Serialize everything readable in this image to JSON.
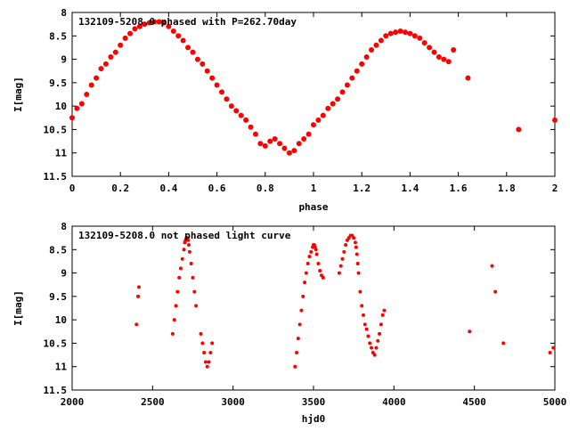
{
  "chart_data": [
    {
      "type": "scatter",
      "title": "132109-5208.0 phased with P=262.70day",
      "xlabel": "phase",
      "ylabel": "I[mag]",
      "xlim": [
        0,
        2
      ],
      "ylim": [
        11.5,
        8
      ],
      "y_inverted": true,
      "x_ticks": [
        "0",
        "0.2",
        "0.4",
        "0.6",
        "0.8",
        "1",
        "1.2",
        "1.4",
        "1.6",
        "1.8",
        "2"
      ],
      "y_ticks": [
        "8",
        "8.5",
        "9",
        "9.5",
        "10",
        "10.5",
        "11",
        "11.5"
      ],
      "grid": false,
      "legend": "none",
      "marker_color": "#ff0000",
      "series": [
        {
          "x": [
            0.0,
            0.02,
            0.04,
            0.06,
            0.08,
            0.1,
            0.12,
            0.14,
            0.16,
            0.18,
            0.2,
            0.22,
            0.24,
            0.26,
            0.28,
            0.3,
            0.32,
            0.34,
            0.36,
            0.38,
            0.4,
            0.42,
            0.44,
            0.46,
            0.48,
            0.5,
            0.52,
            0.54,
            0.56,
            0.58,
            0.6,
            0.62,
            0.64,
            0.66,
            0.68,
            0.7,
            0.72,
            0.74,
            0.76,
            0.78,
            0.8,
            0.82,
            0.84,
            0.86,
            0.88,
            0.9,
            0.92,
            0.94,
            0.96,
            0.98,
            1.0,
            1.02,
            1.04,
            1.06,
            1.08,
            1.1,
            1.12,
            1.14,
            1.16,
            1.18,
            1.2,
            1.22,
            1.24,
            1.26,
            1.28,
            1.3,
            1.32,
            1.34,
            1.36,
            1.38,
            1.4,
            1.42,
            1.44,
            1.46,
            1.48,
            1.5,
            1.52,
            1.54,
            1.56,
            1.58,
            1.64,
            1.85,
            2.0
          ],
          "y": [
            10.25,
            10.05,
            9.95,
            9.75,
            9.55,
            9.4,
            9.2,
            9.1,
            8.95,
            8.85,
            8.7,
            8.55,
            8.45,
            8.35,
            8.3,
            8.25,
            8.22,
            8.2,
            8.2,
            8.22,
            8.3,
            8.4,
            8.5,
            8.6,
            8.75,
            8.85,
            9.0,
            9.1,
            9.25,
            9.4,
            9.55,
            9.7,
            9.85,
            10.0,
            10.1,
            10.2,
            10.3,
            10.45,
            10.6,
            10.8,
            10.85,
            10.75,
            10.7,
            10.8,
            10.9,
            11.0,
            10.95,
            10.8,
            10.7,
            10.6,
            10.4,
            10.3,
            10.2,
            10.05,
            9.95,
            9.85,
            9.7,
            9.55,
            9.4,
            9.25,
            9.1,
            8.95,
            8.8,
            8.7,
            8.6,
            8.5,
            8.45,
            8.42,
            8.4,
            8.42,
            8.45,
            8.5,
            8.55,
            8.65,
            8.75,
            8.85,
            8.95,
            9.0,
            9.05,
            8.8,
            9.4,
            10.5,
            10.3
          ]
        }
      ]
    },
    {
      "type": "scatter",
      "title": "132109-5208.0 not phased light curve",
      "xlabel": "hjd0",
      "ylabel": "I[mag]",
      "xlim": [
        2000,
        5000
      ],
      "ylim": [
        11.5,
        8
      ],
      "y_inverted": true,
      "x_ticks": [
        "2000",
        "2500",
        "3000",
        "3500",
        "4000",
        "4500",
        "5000"
      ],
      "y_ticks": [
        "8",
        "8.5",
        "9",
        "9.5",
        "10",
        "10.5",
        "11",
        "11.5"
      ],
      "grid": false,
      "legend": "none",
      "marker_color": "#ff0000",
      "series": [
        {
          "x": [
            2400,
            2410,
            2415,
            2625,
            2635,
            2645,
            2655,
            2665,
            2675,
            2685,
            2695,
            2700,
            2705,
            2710,
            2715,
            2720,
            2725,
            2730,
            2740,
            2750,
            2760,
            2770,
            2800,
            2810,
            2820,
            2830,
            2840,
            2850,
            2860,
            2870,
            3385,
            3395,
            3405,
            3415,
            3425,
            3435,
            3445,
            3455,
            3465,
            3475,
            3485,
            3495,
            3500,
            3505,
            3510,
            3515,
            3520,
            3530,
            3540,
            3550,
            3560,
            3660,
            3670,
            3680,
            3690,
            3700,
            3710,
            3720,
            3730,
            3740,
            3750,
            3760,
            3765,
            3770,
            3775,
            3780,
            3790,
            3800,
            3810,
            3820,
            3830,
            3840,
            3850,
            3860,
            3870,
            3880,
            3890,
            3900,
            3910,
            3920,
            3930,
            3940,
            4470,
            4610,
            4630,
            4680,
            4970,
            4990
          ],
          "y": [
            10.1,
            9.5,
            9.3,
            10.3,
            10.0,
            9.7,
            9.4,
            9.1,
            8.9,
            8.7,
            8.5,
            8.35,
            8.3,
            8.25,
            8.25,
            8.3,
            8.4,
            8.55,
            8.8,
            9.1,
            9.4,
            9.7,
            10.3,
            10.5,
            10.7,
            10.9,
            11.0,
            10.9,
            10.7,
            10.5,
            11.0,
            10.7,
            10.4,
            10.1,
            9.8,
            9.5,
            9.2,
            9.0,
            8.8,
            8.65,
            8.55,
            8.45,
            8.4,
            8.4,
            8.45,
            8.5,
            8.6,
            8.8,
            8.95,
            9.05,
            9.1,
            9.0,
            8.85,
            8.7,
            8.55,
            8.4,
            8.3,
            8.25,
            8.2,
            8.2,
            8.25,
            8.35,
            8.45,
            8.6,
            8.8,
            9.0,
            9.4,
            9.7,
            9.9,
            10.1,
            10.2,
            10.35,
            10.5,
            10.6,
            10.7,
            10.75,
            10.6,
            10.45,
            10.3,
            10.1,
            9.9,
            9.8,
            10.25,
            8.85,
            9.4,
            10.5,
            10.7,
            10.6
          ]
        }
      ]
    }
  ]
}
